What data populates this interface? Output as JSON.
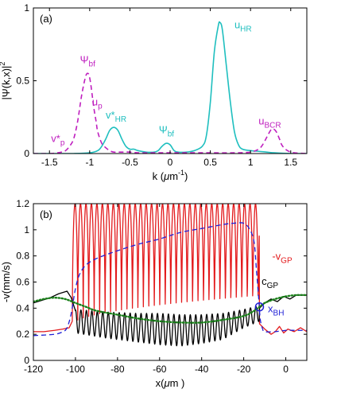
{
  "chart_data": [
    {
      "type": "line",
      "panel_label": "(a)",
      "xlabel": "k (μm⁻¹)",
      "xlabel_parts": {
        "pre": "k (",
        "mu": "μ",
        "unit": "m",
        "sup": "-1",
        "post": ")"
      },
      "ylabel": "|Ψ(k,x)|²",
      "ylabel_parts": {
        "base": "|Ψ(k,x)|",
        "sup": "2"
      },
      "xlim": [
        -1.7,
        1.7
      ],
      "ylim": [
        0,
        1
      ],
      "xticks": [
        -1.5,
        -1,
        -0.5,
        0,
        0.5,
        1,
        1.5
      ],
      "xtick_labels": [
        "-1.5",
        "-1",
        "-0.5",
        "0",
        "0.5",
        "1",
        "1.5"
      ],
      "yticks": [
        0,
        0.5,
        1
      ],
      "ytick_labels": [
        "0",
        "0.5",
        "1"
      ],
      "series": [
        {
          "key": "cyan-solid",
          "color": "#1fbfbf",
          "style": "solid",
          "x": [
            -1.7,
            -1.4,
            -1.2,
            -1.0,
            -0.9,
            -0.85,
            -0.8,
            -0.75,
            -0.7,
            -0.65,
            -0.6,
            -0.55,
            -0.5,
            -0.45,
            -0.4,
            -0.3,
            -0.2,
            -0.15,
            -0.1,
            -0.05,
            0.0,
            0.05,
            0.1,
            0.2,
            0.3,
            0.4,
            0.45,
            0.5,
            0.55,
            0.6,
            0.62,
            0.65,
            0.7,
            0.75,
            0.8,
            0.85,
            0.9,
            1.0,
            1.1,
            1.2,
            1.3,
            1.5,
            1.7
          ],
          "y": [
            0.0,
            0.0,
            0.0,
            0.005,
            0.02,
            0.05,
            0.1,
            0.16,
            0.18,
            0.16,
            0.1,
            0.05,
            0.03,
            0.03,
            0.02,
            0.01,
            0.01,
            0.02,
            0.05,
            0.07,
            0.06,
            0.02,
            0.01,
            0.01,
            0.02,
            0.05,
            0.12,
            0.35,
            0.7,
            0.88,
            0.9,
            0.85,
            0.6,
            0.35,
            0.15,
            0.06,
            0.03,
            0.02,
            0.015,
            0.01,
            0.005,
            0.0,
            0.0
          ]
        },
        {
          "key": "magenta-dashed",
          "color": "#bf1fbf",
          "style": "dashed",
          "x": [
            -1.7,
            -1.5,
            -1.4,
            -1.35,
            -1.3,
            -1.25,
            -1.2,
            -1.15,
            -1.1,
            -1.05,
            -1.02,
            -1.0,
            -0.98,
            -0.95,
            -0.92,
            -0.9,
            -0.85,
            -0.8,
            -0.75,
            -0.7,
            -0.6,
            -0.5,
            -0.4,
            -0.2,
            0.0,
            0.2,
            0.5,
            0.8,
            1.0,
            1.1,
            1.15,
            1.2,
            1.25,
            1.28,
            1.32,
            1.36,
            1.4,
            1.5,
            1.7
          ],
          "y": [
            0.0,
            0.0,
            0.005,
            0.01,
            0.02,
            0.05,
            0.1,
            0.22,
            0.4,
            0.53,
            0.55,
            0.52,
            0.45,
            0.32,
            0.22,
            0.15,
            0.07,
            0.04,
            0.02,
            0.01,
            0.01,
            0.01,
            0.005,
            0.005,
            0.005,
            0.005,
            0.005,
            0.005,
            0.01,
            0.03,
            0.06,
            0.11,
            0.16,
            0.17,
            0.15,
            0.1,
            0.05,
            0.01,
            0.0
          ]
        }
      ],
      "annotations": [
        {
          "key": "psi-bf-left",
          "base": "Ψ",
          "sub": "bf",
          "sup": "",
          "color": "#bf1fbf",
          "x": -1.12,
          "y": 0.62
        },
        {
          "key": "v-star-p",
          "base": "v*",
          "sub": "p",
          "sup": "",
          "color": "#bf1fbf",
          "x": -1.48,
          "y": 0.08
        },
        {
          "key": "u-p",
          "base": "u",
          "sub": "p",
          "sup": "",
          "color": "#bf1fbf",
          "x": -0.97,
          "y": 0.33
        },
        {
          "key": "v-star-hr",
          "base": "v*",
          "sub": "HR",
          "sup": "",
          "color": "#1fbfbf",
          "x": -0.8,
          "y": 0.24
        },
        {
          "key": "psi-bf-mid",
          "base": "Ψ",
          "sub": "bf",
          "sup": "",
          "color": "#1fbfbf",
          "x": -0.14,
          "y": 0.14
        },
        {
          "key": "u-hr",
          "base": "u",
          "sub": "HR",
          "sup": "",
          "color": "#1fbfbf",
          "x": 0.8,
          "y": 0.86
        },
        {
          "key": "u-bcr",
          "base": "u",
          "sub": "BCR",
          "sup": "",
          "color": "#bf1fbf",
          "x": 1.1,
          "y": 0.2
        }
      ]
    },
    {
      "type": "line",
      "panel_label": "(b)",
      "xlabel": "x(μm )",
      "xlabel_parts": {
        "pre": "x(",
        "mu": "μ",
        "unit": "m",
        "sup": "",
        "post": " )"
      },
      "ylabel": "-v(mm/s)",
      "xlim": [
        -120,
        10
      ],
      "ylim": [
        0,
        1.2
      ],
      "xticks": [
        -120,
        -100,
        -80,
        -60,
        -40,
        -20,
        0
      ],
      "xtick_labels": [
        "-120",
        "-100",
        "-80",
        "-60",
        "-40",
        "-20",
        "0"
      ],
      "yticks": [
        0,
        0.2,
        0.4,
        0.6,
        0.8,
        1,
        1.2
      ],
      "ytick_labels": [
        "0",
        "0.2",
        "0.4",
        "0.6",
        "0.8",
        "1",
        "1.2"
      ],
      "series": [
        {
          "key": "v-gp",
          "color": "#e31a1c",
          "style": "solid",
          "model": "oscillating",
          "x_left": [
            -120,
            -115,
            -110,
            -106,
            -103,
            -101.5
          ],
          "y_left": [
            0.22,
            0.22,
            0.23,
            0.24,
            0.25,
            0.3
          ],
          "oscillation": {
            "x_start": -101.5,
            "x_end": -12.5,
            "period": 2.6,
            "min": 0.27,
            "max": 1.2
          },
          "x_right": [
            -12.5,
            -10,
            -7,
            -5,
            -3,
            -1,
            1,
            4,
            7,
            10
          ],
          "y_right": [
            0.28,
            0.24,
            0.2,
            0.22,
            0.26,
            0.21,
            0.24,
            0.22,
            0.25,
            0.22
          ]
        },
        {
          "key": "c-gp",
          "color": "#000000",
          "style": "solid",
          "model": "oscillating",
          "x_left": [
            -120,
            -112,
            -108,
            -104,
            -102,
            -100
          ],
          "y_left": [
            0.44,
            0.48,
            0.51,
            0.53,
            0.48,
            0.38
          ],
          "oscillation": {
            "x_start": -100,
            "x_end": -12.5,
            "period": 2.6,
            "env_x": [
              -100,
              -85,
              -70,
              -60,
              -50,
              -40,
              -30,
              -20,
              -12.5
            ],
            "env_mid": [
              0.3,
              0.27,
              0.25,
              0.24,
              0.23,
              0.24,
              0.26,
              0.32,
              0.36
            ],
            "env_amp": [
              0.09,
              0.1,
              0.11,
              0.12,
              0.12,
              0.11,
              0.1,
              0.07,
              0.06
            ]
          },
          "x_right": [
            -12.5,
            -10,
            -7,
            -4,
            -1,
            2,
            5,
            10
          ],
          "y_right": [
            0.4,
            0.44,
            0.47,
            0.45,
            0.49,
            0.47,
            0.5,
            0.5
          ]
        },
        {
          "key": "blue-dashed",
          "color": "#1f1fd6",
          "style": "dashed",
          "model": "points",
          "x": [
            -120,
            -110,
            -106,
            -104,
            -102,
            -100,
            -98,
            -95,
            -90,
            -80,
            -70,
            -60,
            -50,
            -40,
            -30,
            -25,
            -20,
            -17,
            -15,
            -14,
            -13,
            -12.5,
            -12,
            -11,
            -10,
            -5,
            0,
            5,
            10
          ],
          "y": [
            0.19,
            0.2,
            0.22,
            0.25,
            0.36,
            0.55,
            0.66,
            0.73,
            0.78,
            0.84,
            0.89,
            0.93,
            0.98,
            1.01,
            1.04,
            1.05,
            1.05,
            1.0,
            0.9,
            0.7,
            0.5,
            0.38,
            0.3,
            0.24,
            0.22,
            0.22,
            0.23,
            0.23,
            0.23
          ]
        },
        {
          "key": "green-dotted",
          "color": "#1a7f1a",
          "style": "dotted",
          "model": "points",
          "x": [
            -120,
            -115,
            -110,
            -105,
            -100,
            -95,
            -90,
            -80,
            -70,
            -60,
            -50,
            -40,
            -30,
            -20,
            -15,
            -12.5,
            -10,
            -5,
            0,
            5,
            10
          ],
          "y": [
            0.45,
            0.47,
            0.48,
            0.47,
            0.44,
            0.41,
            0.38,
            0.35,
            0.32,
            0.3,
            0.29,
            0.29,
            0.31,
            0.34,
            0.38,
            0.41,
            0.44,
            0.47,
            0.49,
            0.5,
            0.5
          ]
        }
      ],
      "marker": {
        "key": "blue-circle",
        "x": -12.5,
        "y": 0.41,
        "color": "#1f1fd6"
      },
      "annotations": [
        {
          "key": "neg-v-gp",
          "base": "-v",
          "sub": "GP",
          "sup": "",
          "color": "#e31a1c",
          "x": -6.5,
          "y": 0.77
        },
        {
          "key": "c-gp-label",
          "base": "c",
          "sub": "GP",
          "sup": "",
          "color": "#000000",
          "x": -11.5,
          "y": 0.58
        },
        {
          "key": "x-bh",
          "base": "x",
          "sub": "BH",
          "sup": "",
          "color": "#1f1fd6",
          "x": -8.5,
          "y": 0.37
        }
      ]
    }
  ]
}
